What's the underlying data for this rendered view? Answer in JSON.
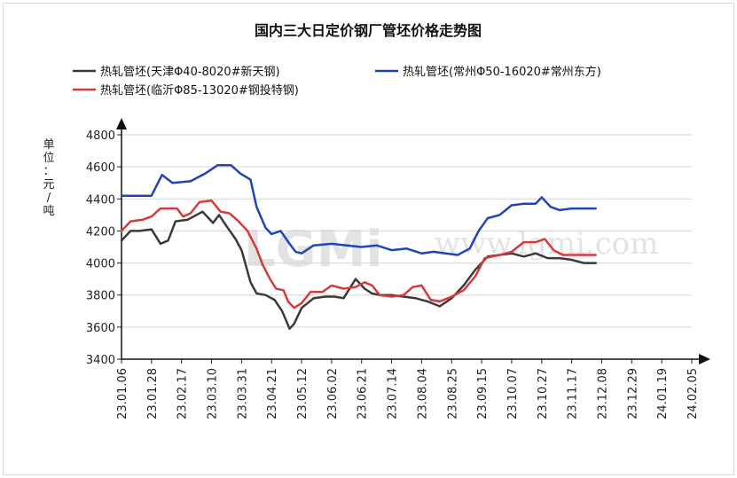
{
  "chart_data": {
    "type": "line",
    "title": "国内三大日定价钢厂管坯价格走势图",
    "ylabel": "单位：元/吨",
    "ylim": [
      3400,
      4800
    ],
    "yticks": [
      3400,
      3600,
      3800,
      4000,
      4200,
      4400,
      4600,
      4800
    ],
    "grid": true,
    "legend_position": "top",
    "watermark": "LGMI www.lgmi.com",
    "categories": [
      "23.01.06",
      "23.01.28",
      "23.02.17",
      "23.03.10",
      "23.03.31",
      "23.04.21",
      "23.05.12",
      "23.06.02",
      "23.06.21",
      "23.07.14",
      "23.08.04",
      "23.08.25",
      "23.09.15",
      "23.10.07",
      "23.10.27",
      "23.11.17",
      "23.12.08",
      "23.12.29",
      "24.01.19",
      "24.02.05"
    ],
    "series": [
      {
        "name": "热轧管坯(天津Φ40-8020#新天钢)",
        "color": "#3a3a3a",
        "values": [
          [
            0,
            4140
          ],
          [
            0.3,
            4200
          ],
          [
            0.6,
            4200
          ],
          [
            1.0,
            4210
          ],
          [
            1.3,
            4120
          ],
          [
            1.55,
            4140
          ],
          [
            1.8,
            4260
          ],
          [
            2.2,
            4270
          ],
          [
            2.7,
            4320
          ],
          [
            3.05,
            4250
          ],
          [
            3.25,
            4300
          ],
          [
            3.5,
            4230
          ],
          [
            3.8,
            4150
          ],
          [
            4.0,
            4080
          ],
          [
            4.3,
            3880
          ],
          [
            4.5,
            3810
          ],
          [
            4.8,
            3800
          ],
          [
            5.1,
            3770
          ],
          [
            5.35,
            3700
          ],
          [
            5.6,
            3590
          ],
          [
            5.75,
            3620
          ],
          [
            6.0,
            3720
          ],
          [
            6.4,
            3780
          ],
          [
            6.8,
            3790
          ],
          [
            7.1,
            3790
          ],
          [
            7.4,
            3780
          ],
          [
            7.8,
            3900
          ],
          [
            8.1,
            3840
          ],
          [
            8.35,
            3810
          ],
          [
            8.6,
            3800
          ],
          [
            9.0,
            3800
          ],
          [
            9.4,
            3790
          ],
          [
            9.8,
            3780
          ],
          [
            10.2,
            3760
          ],
          [
            10.6,
            3730
          ],
          [
            11.0,
            3780
          ],
          [
            11.4,
            3860
          ],
          [
            11.8,
            3960
          ],
          [
            12.2,
            4040
          ],
          [
            12.6,
            4050
          ],
          [
            13.0,
            4060
          ],
          [
            13.4,
            4040
          ],
          [
            13.8,
            4060
          ],
          [
            14.2,
            4030
          ],
          [
            14.6,
            4030
          ],
          [
            15.0,
            4020
          ],
          [
            15.4,
            4000
          ],
          [
            15.8,
            4000
          ]
        ]
      },
      {
        "name": "热轧管坯(常州Φ50-16020#常州东方)",
        "color": "#2145b5",
        "values": [
          [
            0,
            4420
          ],
          [
            0.6,
            4420
          ],
          [
            1.0,
            4420
          ],
          [
            1.35,
            4550
          ],
          [
            1.7,
            4500
          ],
          [
            2.3,
            4510
          ],
          [
            2.8,
            4560
          ],
          [
            3.2,
            4610
          ],
          [
            3.65,
            4610
          ],
          [
            3.95,
            4560
          ],
          [
            4.3,
            4520
          ],
          [
            4.5,
            4350
          ],
          [
            4.8,
            4220
          ],
          [
            5.0,
            4180
          ],
          [
            5.3,
            4200
          ],
          [
            5.6,
            4120
          ],
          [
            5.8,
            4070
          ],
          [
            6.0,
            4060
          ],
          [
            6.4,
            4110
          ],
          [
            7.0,
            4120
          ],
          [
            7.5,
            4110
          ],
          [
            8.0,
            4100
          ],
          [
            8.5,
            4110
          ],
          [
            9.0,
            4080
          ],
          [
            9.5,
            4090
          ],
          [
            10.0,
            4060
          ],
          [
            10.4,
            4070
          ],
          [
            10.8,
            4060
          ],
          [
            11.2,
            4050
          ],
          [
            11.6,
            4090
          ],
          [
            11.9,
            4200
          ],
          [
            12.2,
            4280
          ],
          [
            12.6,
            4300
          ],
          [
            13.0,
            4360
          ],
          [
            13.4,
            4370
          ],
          [
            13.8,
            4370
          ],
          [
            14.0,
            4410
          ],
          [
            14.3,
            4350
          ],
          [
            14.6,
            4330
          ],
          [
            15.0,
            4340
          ],
          [
            15.4,
            4340
          ],
          [
            15.8,
            4340
          ]
        ]
      },
      {
        "name": "热轧管坯(临沂Φ85-13020#钢投特钢)",
        "color": "#d63a3a",
        "values": [
          [
            0,
            4200
          ],
          [
            0.3,
            4260
          ],
          [
            0.7,
            4270
          ],
          [
            1.0,
            4290
          ],
          [
            1.3,
            4340
          ],
          [
            1.6,
            4340
          ],
          [
            1.85,
            4340
          ],
          [
            2.05,
            4290
          ],
          [
            2.3,
            4310
          ],
          [
            2.6,
            4380
          ],
          [
            3.0,
            4390
          ],
          [
            3.3,
            4320
          ],
          [
            3.6,
            4310
          ],
          [
            3.9,
            4260
          ],
          [
            4.2,
            4200
          ],
          [
            4.5,
            4090
          ],
          [
            4.7,
            3990
          ],
          [
            4.95,
            3900
          ],
          [
            5.15,
            3840
          ],
          [
            5.4,
            3830
          ],
          [
            5.55,
            3760
          ],
          [
            5.75,
            3720
          ],
          [
            6.0,
            3750
          ],
          [
            6.3,
            3820
          ],
          [
            6.7,
            3820
          ],
          [
            7.0,
            3860
          ],
          [
            7.4,
            3840
          ],
          [
            7.8,
            3850
          ],
          [
            8.1,
            3880
          ],
          [
            8.35,
            3860
          ],
          [
            8.6,
            3800
          ],
          [
            9.0,
            3790
          ],
          [
            9.4,
            3800
          ],
          [
            9.7,
            3850
          ],
          [
            10.0,
            3860
          ],
          [
            10.3,
            3770
          ],
          [
            10.6,
            3760
          ],
          [
            11.0,
            3790
          ],
          [
            11.4,
            3830
          ],
          [
            11.8,
            3920
          ],
          [
            12.1,
            4030
          ],
          [
            12.6,
            4050
          ],
          [
            13.0,
            4070
          ],
          [
            13.4,
            4130
          ],
          [
            13.8,
            4130
          ],
          [
            14.1,
            4150
          ],
          [
            14.4,
            4080
          ],
          [
            14.7,
            4050
          ],
          [
            15.0,
            4050
          ],
          [
            15.4,
            4050
          ],
          [
            15.8,
            4050
          ]
        ]
      }
    ]
  }
}
